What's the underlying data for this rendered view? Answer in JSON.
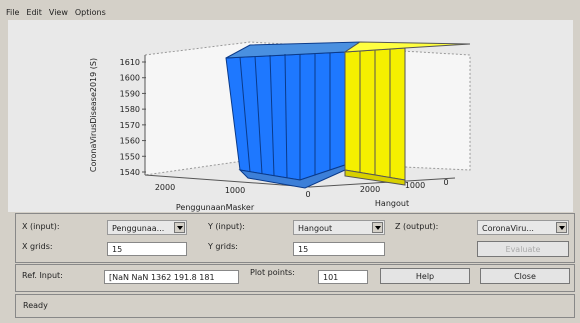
{
  "menu": [
    "File",
    "Edit",
    "View",
    "Options"
  ],
  "plot": {
    "z_label": "CoronaVirusDisease2019 (S)",
    "z_ticks": [
      "1610",
      "1600",
      "1590",
      "1580",
      "1570",
      "1560",
      "1550",
      "1540"
    ],
    "x_label": "PenggunaanMasker",
    "x_ticks": [
      "2000",
      "1000",
      "0"
    ],
    "y_label": "Hangout",
    "y_ticks": [
      "2000",
      "1000",
      "0"
    ]
  },
  "controls": {
    "x_input": {
      "label": "X (input):",
      "value": "Penggunaa..."
    },
    "y_input": {
      "label": "Y (input):",
      "value": "Hangout"
    },
    "z_output": {
      "label": "Z (output):",
      "value": "CoronaViru..."
    },
    "x_grids": {
      "label": "X grids:",
      "value": "15"
    },
    "y_grids": {
      "label": "Y grids:",
      "value": "15"
    },
    "evaluate": "Evaluate",
    "ref_input": {
      "label": "Ref. Input:",
      "value": "[NaN NaN 1362 191.8 181"
    },
    "plot_points": {
      "label": "Plot points:",
      "value": "101"
    },
    "help": "Help",
    "close": "Close"
  },
  "status": "Ready"
}
